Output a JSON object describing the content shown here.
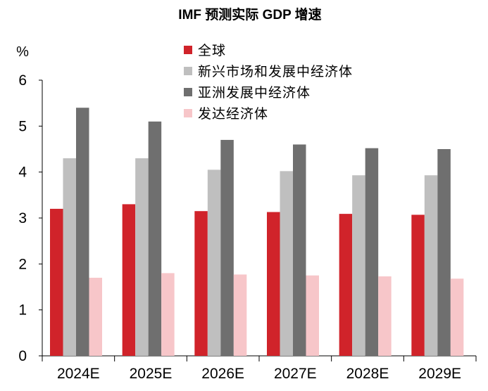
{
  "chart_data": {
    "type": "bar",
    "title": "IMF 预测实际 GDP 增速",
    "ylabel": "%",
    "xlabel": "",
    "categories": [
      "2024E",
      "2025E",
      "2026E",
      "2027E",
      "2028E",
      "2029E"
    ],
    "ylim": [
      0,
      6
    ],
    "yticks": [
      "0",
      "1",
      "2",
      "3",
      "4",
      "5",
      "6"
    ],
    "grid": false,
    "legend_position": "top-right",
    "series": [
      {
        "name": "全球",
        "color": "#d0232a",
        "values": [
          3.2,
          3.3,
          3.15,
          3.13,
          3.09,
          3.07
        ]
      },
      {
        "name": "新兴市场和发展中经济体",
        "color": "#bfbfbf",
        "values": [
          4.3,
          4.3,
          4.05,
          4.02,
          3.93,
          3.93
        ]
      },
      {
        "name": "亚洲发展中经济体",
        "color": "#6f6f6f",
        "values": [
          5.4,
          5.1,
          4.7,
          4.6,
          4.52,
          4.5
        ]
      },
      {
        "name": "发达经济体",
        "color": "#f7c6c9",
        "values": [
          1.7,
          1.8,
          1.77,
          1.75,
          1.73,
          1.68
        ]
      }
    ]
  }
}
